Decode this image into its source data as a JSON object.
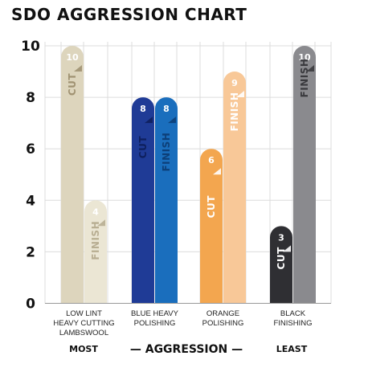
{
  "chart_data": {
    "type": "bar",
    "title": "SDO AGGRESSION CHART",
    "ylim": [
      0,
      10
    ],
    "y_ticks": [
      "0",
      "2",
      "4",
      "6",
      "8",
      "10"
    ],
    "grid": true,
    "categories": [
      [
        "LOW LINT",
        "HEAVY CUTTING",
        "LAMBSWOOL"
      ],
      [
        "BLUE HEAVY",
        "POLISHING"
      ],
      [
        "ORANGE",
        "POLISHING"
      ],
      [
        "BLACK",
        "FINISHING"
      ]
    ],
    "series": [
      {
        "name": "CUT",
        "values": [
          10,
          8,
          6,
          3
        ]
      },
      {
        "name": "FINISH",
        "values": [
          4,
          8,
          9,
          10
        ]
      }
    ],
    "bar_colors": {
      "CUT": [
        "#ddd5bd",
        "#1f3b96",
        "#f3a64f",
        "#2f2f33"
      ],
      "FINISH": [
        "#ebe6d4",
        "#1a6ebd",
        "#f8c898",
        "#8a8a8e"
      ]
    },
    "label_colors": {
      "CUT": [
        "#a09272",
        "#0e1f5c",
        "#ffffff",
        "#ffffff"
      ],
      "FINISH": [
        "#b8ae92",
        "#0d3f78",
        "#ffffff",
        "#3a3a3e"
      ]
    },
    "footer": {
      "left": "MOST",
      "center": "— AGGRESSION —",
      "right": "LEAST"
    }
  }
}
